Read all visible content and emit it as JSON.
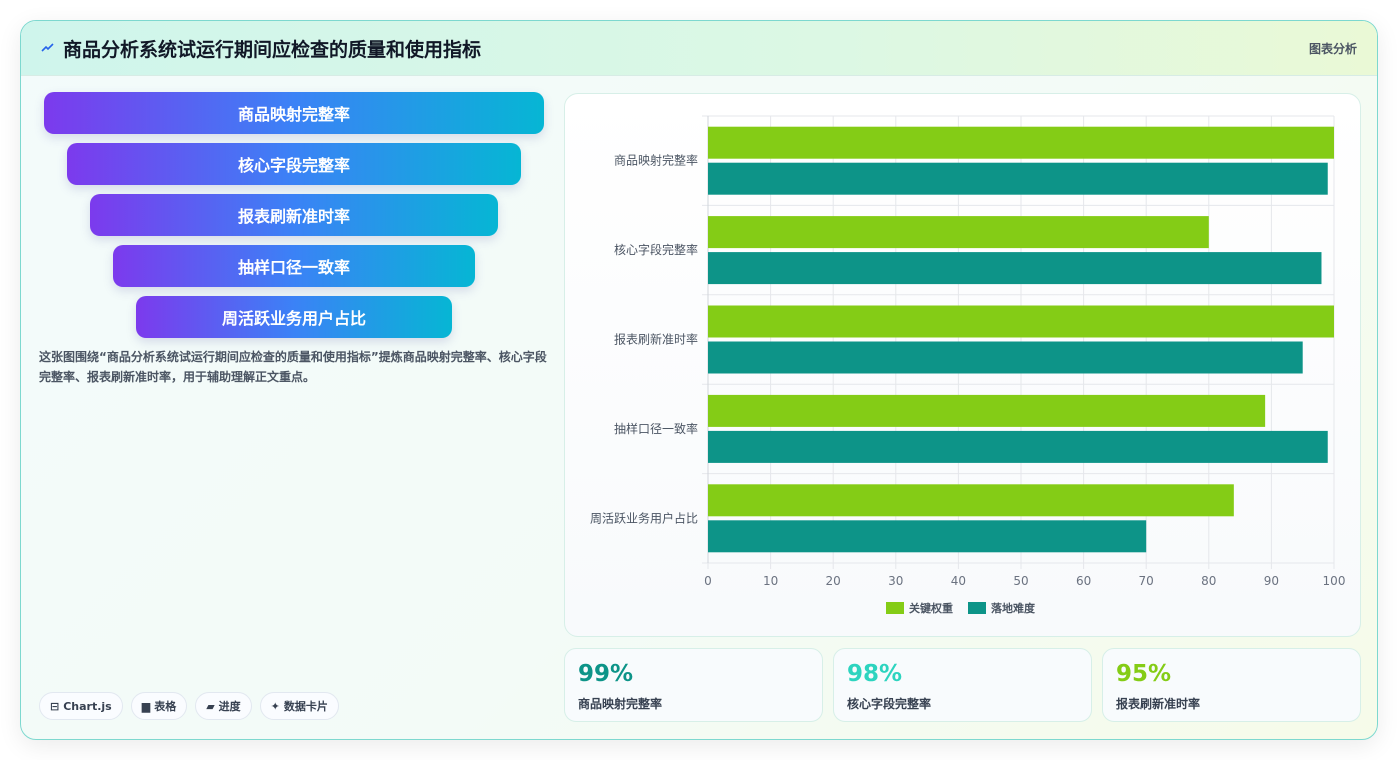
{
  "header": {
    "title": "商品分析系统试运行期间应检查的质量和使用指标",
    "tag": "图表分析",
    "icon": "spark-icon"
  },
  "funnel": [
    "商品映射完整率",
    "核心字段完整率",
    "报表刷新准时率",
    "抽样口径一致率",
    "周活跃业务用户占比"
  ],
  "description": "这张图围绕“商品分析系统试运行期间应检查的质量和使用指标”提炼商品映射完整率、核心字段完整率、报表刷新准时率，用于辅助理解正文重点。",
  "chips": [
    {
      "icon": "chart-icon",
      "glyph": "⊟",
      "label": "Chart.js"
    },
    {
      "icon": "table-icon",
      "glyph": "▆",
      "label": "表格"
    },
    {
      "icon": "progress-icon",
      "glyph": "▰",
      "label": "进度"
    },
    {
      "icon": "card-icon",
      "glyph": "✦",
      "label": "数据卡片"
    }
  ],
  "stats": [
    {
      "value": "99%",
      "label": "商品映射完整率",
      "color": "#0d9488"
    },
    {
      "value": "98%",
      "label": "核心字段完整率",
      "color": "#2dd4bf"
    },
    {
      "value": "95%",
      "label": "报表刷新准时率",
      "color": "#84cc16"
    }
  ],
  "chart_data": {
    "type": "bar",
    "orientation": "horizontal",
    "categories": [
      "商品映射完整率",
      "核心字段完整率",
      "报表刷新准时率",
      "抽样口径一致率",
      "周活跃业务用户占比"
    ],
    "series": [
      {
        "name": "关键权重",
        "color": "#84cc16",
        "values": [
          100,
          80,
          100,
          89,
          84
        ]
      },
      {
        "name": "落地难度",
        "color": "#0d9488",
        "values": [
          99,
          98,
          95,
          99,
          70
        ]
      }
    ],
    "xlim": [
      0,
      100
    ],
    "xticks": [
      0,
      10,
      20,
      30,
      40,
      50,
      60,
      70,
      80,
      90,
      100
    ],
    "grid": true,
    "legend": "bottom"
  }
}
